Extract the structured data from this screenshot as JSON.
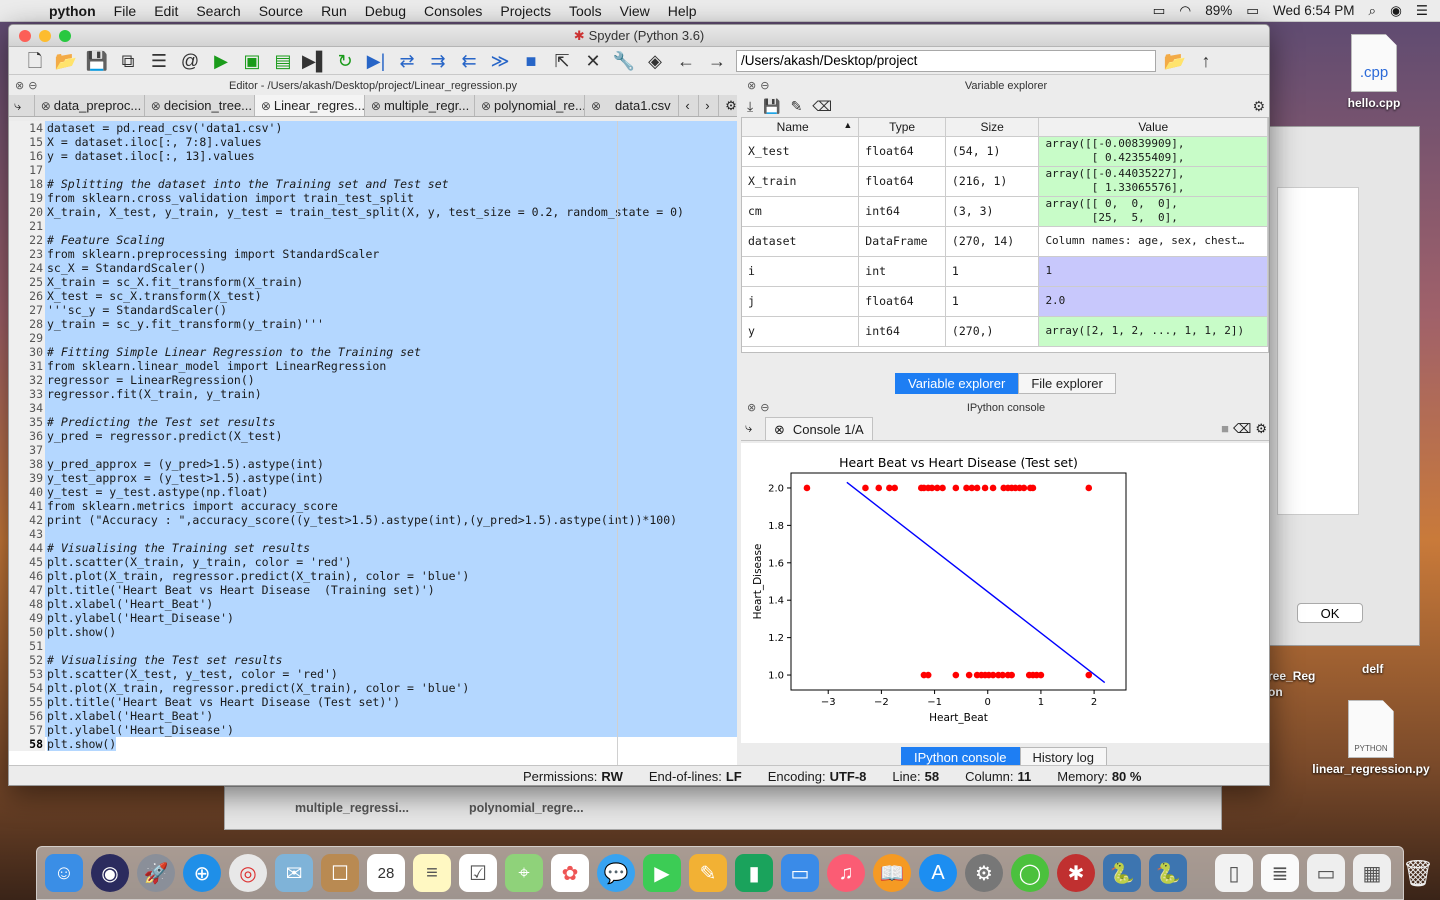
{
  "menubar": {
    "app": "python",
    "items": [
      "File",
      "Edit",
      "Search",
      "Source",
      "Run",
      "Debug",
      "Consoles",
      "Projects",
      "Tools",
      "View",
      "Help"
    ],
    "battery": "89%",
    "clock": "Wed 6:54 PM"
  },
  "window": {
    "title": "Spyder (Python 3.6)",
    "path": "/Users/akash/Desktop/project"
  },
  "editor": {
    "header": "Editor - /Users/akash/Desktop/project/Linear_regression.py",
    "tabs": [
      "data_preproc...",
      "decision_tree...",
      "Linear_regres...",
      "multiple_regr...",
      "polynomial_re...",
      "data1.csv"
    ],
    "lines": [
      {
        "n": "14",
        "t": "dataset = pd.read_csv('data1.csv')"
      },
      {
        "n": "15",
        "t": "X = dataset.iloc[:, 7:8].values"
      },
      {
        "n": "16",
        "t": "y = dataset.iloc[:, 13].values"
      },
      {
        "n": "17",
        "t": ""
      },
      {
        "n": "18",
        "t": "# Splitting the dataset into the Training set and Test set"
      },
      {
        "n": "19",
        "t": "from sklearn.cross_validation import train_test_split"
      },
      {
        "n": "20",
        "t": "X_train, X_test, y_train, y_test = train_test_split(X, y, test_size = 0.2, random_state = 0)"
      },
      {
        "n": "21",
        "t": ""
      },
      {
        "n": "22",
        "t": "# Feature Scaling"
      },
      {
        "n": "23",
        "t": "from sklearn.preprocessing import StandardScaler"
      },
      {
        "n": "24",
        "t": "sc_X = StandardScaler()"
      },
      {
        "n": "25",
        "t": "X_train = sc_X.fit_transform(X_train)"
      },
      {
        "n": "26",
        "t": "X_test = sc_X.transform(X_test)"
      },
      {
        "n": "27",
        "t": "'''sc_y = StandardScaler()"
      },
      {
        "n": "28",
        "t": "y_train = sc_y.fit_transform(y_train)'''"
      },
      {
        "n": "29",
        "t": ""
      },
      {
        "n": "30",
        "t": "# Fitting Simple Linear Regression to the Training set"
      },
      {
        "n": "31",
        "t": "from sklearn.linear_model import LinearRegression"
      },
      {
        "n": "32",
        "t": "regressor = LinearRegression()"
      },
      {
        "n": "33",
        "t": "regressor.fit(X_train, y_train)"
      },
      {
        "n": "34",
        "t": ""
      },
      {
        "n": "35",
        "t": "# Predicting the Test set results"
      },
      {
        "n": "36",
        "t": "y_pred = regressor.predict(X_test)"
      },
      {
        "n": "37",
        "t": ""
      },
      {
        "n": "38",
        "t": "y_pred_approx = (y_pred>1.5).astype(int)"
      },
      {
        "n": "39",
        "t": "y_test_approx = (y_test>1.5).astype(int)"
      },
      {
        "n": "40",
        "t": "y_test = y_test.astype(np.float)"
      },
      {
        "n": "41",
        "t": "from sklearn.metrics import accuracy_score"
      },
      {
        "n": "42",
        "t": "print (\"Accuracy : \",accuracy_score((y_test>1.5).astype(int),(y_pred>1.5).astype(int))*100)"
      },
      {
        "n": "43",
        "t": ""
      },
      {
        "n": "44",
        "t": "# Visualising the Training set results"
      },
      {
        "n": "45",
        "t": "plt.scatter(X_train, y_train, color = 'red')"
      },
      {
        "n": "46",
        "t": "plt.plot(X_train, regressor.predict(X_train), color = 'blue')"
      },
      {
        "n": "47",
        "t": "plt.title('Heart Beat vs Heart Disease  (Training set)')"
      },
      {
        "n": "48",
        "t": "plt.xlabel('Heart_Beat')"
      },
      {
        "n": "49",
        "t": "plt.ylabel('Heart_Disease')"
      },
      {
        "n": "50",
        "t": "plt.show()"
      },
      {
        "n": "51",
        "t": ""
      },
      {
        "n": "52",
        "t": "# Visualising the Test set results"
      },
      {
        "n": "53",
        "t": "plt.scatter(X_test, y_test, color = 'red')"
      },
      {
        "n": "54",
        "t": "plt.plot(X_train, regressor.predict(X_train), color = 'blue')"
      },
      {
        "n": "55",
        "t": "plt.title('Heart Beat vs Heart Disease (Test set)')"
      },
      {
        "n": "56",
        "t": "plt.xlabel('Heart_Beat')"
      },
      {
        "n": "57",
        "t": "plt.ylabel('Heart_Disease')"
      },
      {
        "n": "58",
        "t": "plt.show()"
      }
    ]
  },
  "variable_explorer": {
    "header": "Variable explorer",
    "columns": [
      "Name",
      "Type",
      "Size",
      "Value"
    ],
    "rows": [
      {
        "name": "X_test",
        "type": "float64",
        "size": "(54, 1)",
        "value": "array([[-0.00839909],\n       [ 0.42355409],",
        "color": "green"
      },
      {
        "name": "X_train",
        "type": "float64",
        "size": "(216, 1)",
        "value": "array([[-0.44035227],\n       [ 1.33065576],",
        "color": "green"
      },
      {
        "name": "cm",
        "type": "int64",
        "size": "(3, 3)",
        "value": "array([[ 0,  0,  0],\n       [25,  5,  0],",
        "color": "green"
      },
      {
        "name": "dataset",
        "type": "DataFrame",
        "size": "(270, 14)",
        "value": "Column names: age, sex, chest…",
        "color": "white"
      },
      {
        "name": "i",
        "type": "int",
        "size": "1",
        "value": "1",
        "color": "violet"
      },
      {
        "name": "j",
        "type": "float64",
        "size": "1",
        "value": "2.0",
        "color": "violet"
      },
      {
        "name": "y",
        "type": "int64",
        "size": "(270,)",
        "value": "array([2, 1, 2, ..., 1, 1, 2])",
        "color": "green"
      }
    ],
    "tabs": [
      "Variable explorer",
      "File explorer"
    ]
  },
  "console": {
    "header": "IPython console",
    "tab": "Console 1/A",
    "tabs": [
      "IPython console",
      "History log"
    ]
  },
  "chart_data": {
    "type": "scatter",
    "title": "Heart Beat vs Heart Disease (Test set)",
    "xlabel": "Heart_Beat",
    "ylabel": "Heart_Disease",
    "xlim": [
      -3.7,
      2.6
    ],
    "ylim": [
      0.92,
      2.08
    ],
    "xticks": [
      -3,
      -2,
      -1,
      0,
      1,
      2
    ],
    "yticks": [
      1.0,
      1.2,
      1.4,
      1.6,
      1.8,
      2.0
    ],
    "ytick_labels": [
      "1.0",
      "1.2",
      "1.4",
      "1.6",
      "1.8",
      "2.0"
    ],
    "xtick_labels": [
      "−3",
      "−2",
      "−1",
      "0",
      "1",
      "2"
    ],
    "scatter": {
      "color": "#ff0000",
      "x": [
        -3.4,
        -2.3,
        -2.05,
        -1.85,
        -1.75,
        -1.25,
        -1.2,
        -1.12,
        -1.05,
        -0.95,
        -0.85,
        -0.6,
        -0.4,
        -0.3,
        -0.2,
        -0.05,
        0.1,
        0.3,
        0.38,
        0.45,
        0.52,
        0.6,
        0.68,
        0.8,
        0.85,
        1.9,
        -1.2,
        -1.12,
        -0.6,
        -0.35,
        -0.2,
        -0.12,
        -0.05,
        0.02,
        0.1,
        0.2,
        0.28,
        0.38,
        0.45,
        0.78,
        0.85,
        0.92,
        1.0,
        1.9
      ],
      "y": [
        2,
        2,
        2,
        2,
        2,
        2,
        2,
        2,
        2,
        2,
        2,
        2,
        2,
        2,
        2,
        2,
        2,
        2,
        2,
        2,
        2,
        2,
        2,
        2,
        2,
        2,
        1,
        1,
        1,
        1,
        1,
        1,
        1,
        1,
        1,
        1,
        1,
        1,
        1,
        1,
        1,
        1,
        1,
        1
      ]
    },
    "line": {
      "color": "#0000ff",
      "x": [
        -2.65,
        2.2
      ],
      "y": [
        2.03,
        0.96
      ]
    }
  },
  "statusbar": {
    "permissions_label": "Permissions:",
    "permissions": "RW",
    "eol_label": "End-of-lines:",
    "eol": "LF",
    "encoding_label": "Encoding:",
    "encoding": "UTF-8",
    "line_label": "Line:",
    "line": "58",
    "column_label": "Column:",
    "column": "11",
    "memory_label": "Memory:",
    "memory": "80 %"
  },
  "desktop": {
    "files": [
      {
        "name": "hello.cpp",
        "ext": ".cpp"
      },
      {
        "name": "linear_regression.py",
        "ext": "PYTHON"
      }
    ],
    "labels": [
      "delf",
      "ree_Reg",
      "on"
    ],
    "dialog_ok": "OK",
    "finder_files": [
      "multiple_regressi...",
      "polynomial_regre..."
    ]
  },
  "colors": {
    "accent": "#1e7ef3",
    "selection": "#b4d7ff",
    "value_green": "#c8fcc8",
    "value_violet": "#c8c8fc"
  }
}
